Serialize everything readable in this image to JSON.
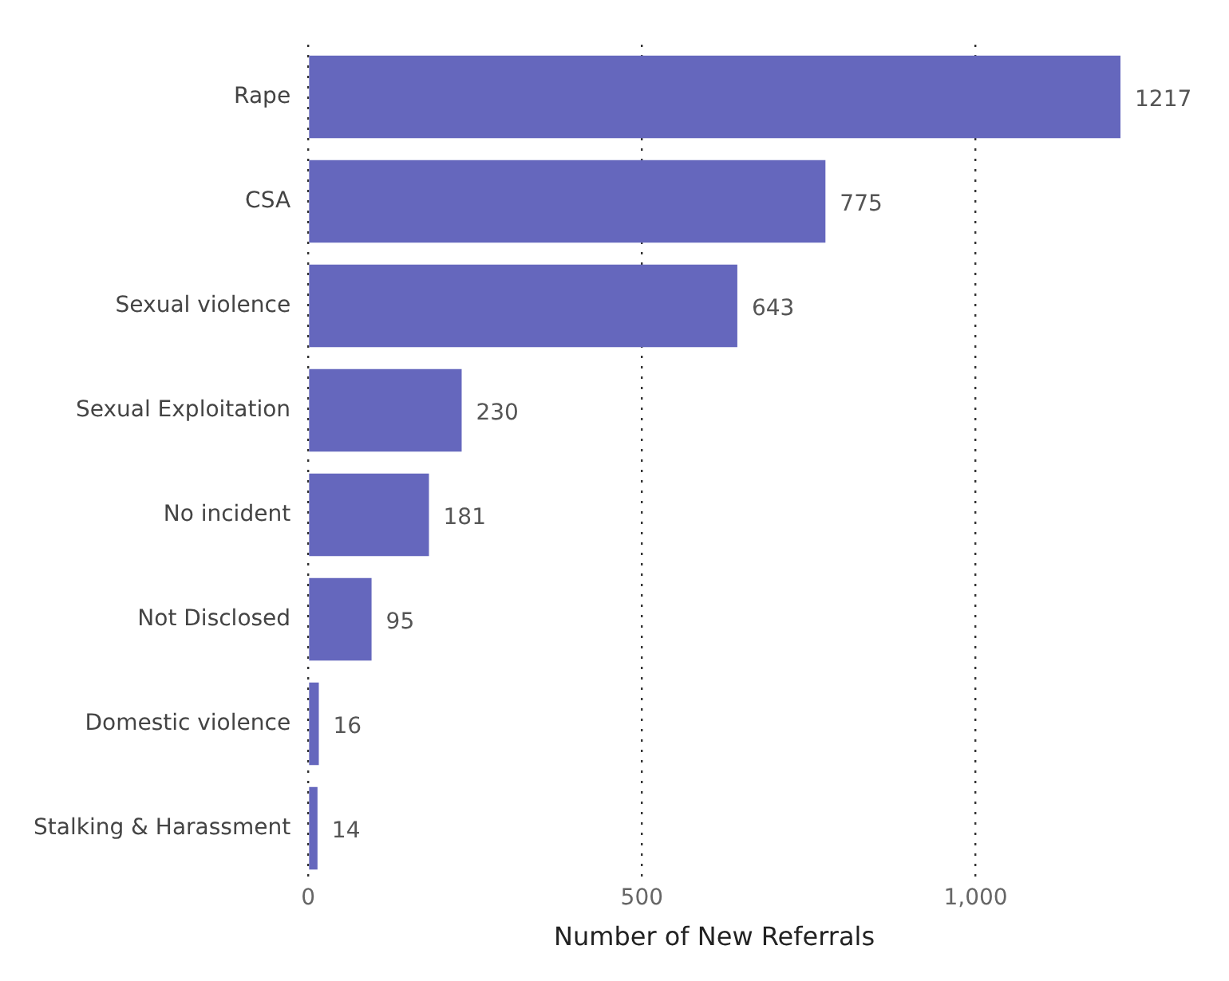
{
  "chart_data": {
    "type": "bar",
    "orientation": "horizontal",
    "categories": [
      "Rape",
      "CSA",
      "Sexual violence",
      "Sexual Exploitation",
      "No incident",
      "Not Disclosed",
      "Domestic violence",
      "Stalking & Harassment"
    ],
    "values": [
      1217,
      775,
      643,
      230,
      181,
      95,
      16,
      14
    ],
    "color": "#6567bd",
    "xlabel": "Number of New Referrals",
    "xlim": [
      0,
      1217
    ],
    "xticks": [
      0,
      {
        "value": 500,
        "label": "500"
      },
      {
        "value": 1000,
        "label": "1,000"
      }
    ],
    "grid": "x",
    "data_labels": true,
    "legend": false
  }
}
